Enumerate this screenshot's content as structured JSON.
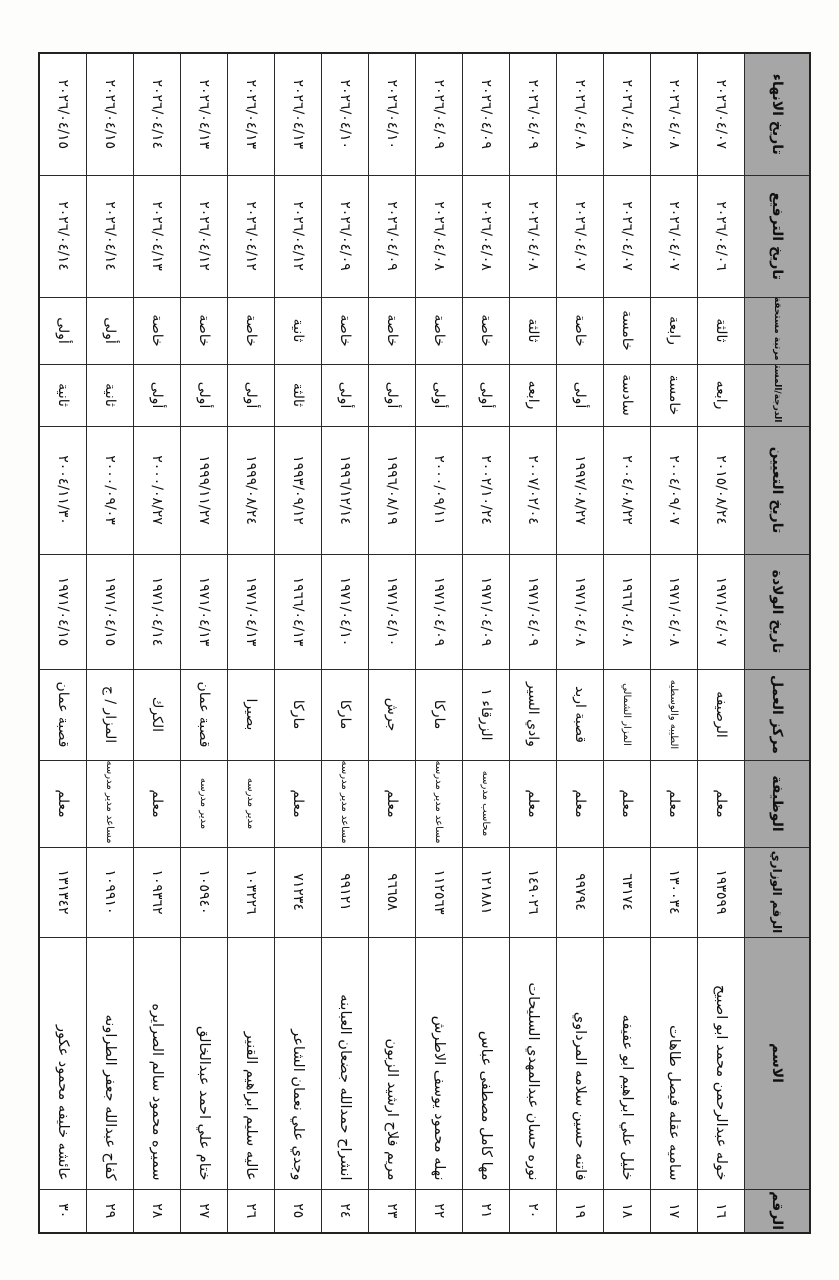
{
  "headers": [
    "الرقم",
    "الاسم",
    "الرقم الوزاري",
    "الوظيفة",
    "مركز العمل",
    "تاريخ الولادة",
    "تاريخ التعيين",
    "الدرجة/المستحقة",
    "مرتبة مستحقة",
    "تاريخ الترفيع",
    "تاريخ الانهاء"
  ],
  "header_color": "#a6a6a6",
  "rows": [
    {
      "no": "١٦",
      "name": "خوله عبدالرحمن محمد ابو اصبيح",
      "ministry_no": "١٩٣٥٩٩",
      "job": "معلم",
      "center": "الرصيفه",
      "birth": "١٩٧١/٠٤/٠٧",
      "appointed": "٢٠١٥/٠٨/٢٤",
      "grade": "رابعه",
      "rank": "ثالثة",
      "promotion": "٢٠٢٦/٠٤/٠٦",
      "end": "٢٠٢٦/٠٤/٠٧"
    },
    {
      "no": "١٧",
      "name": "ساميه عقله فيصل طاهات",
      "ministry_no": "١٣٠٠٣٤",
      "job": "معلم",
      "center": "الطيبه والوسطيه",
      "birth": "١٩٧١/٠٤/٠٨",
      "appointed": "٢٠٠٤/٠٩/٠٧",
      "grade": "خامسة",
      "rank": "رابعة",
      "promotion": "٢٠٢٦/٠٤/٠٧",
      "end": "٢٠٢٦/٠٤/٠٨"
    },
    {
      "no": "١٨",
      "name": "خليل علي ابراهيم ابو عفيفه",
      "ministry_no": "٦٣١٧٤",
      "job": "معلم",
      "center": "المزار الشمالي",
      "birth": "١٩٦٦/٠٤/٠٨",
      "appointed": "٢٠٠٤/٠٨/٢٢",
      "grade": "سادسة",
      "rank": "خامسة",
      "promotion": "٢٠٢٦/٠٤/٠٧",
      "end": "٢٠٢٦/٠٤/٠٨"
    },
    {
      "no": "١٩",
      "name": "فاتنه حسين سلامه المرداوي",
      "ministry_no": "٩٩٧٩٤",
      "job": "معلم",
      "center": "قصبة اربد",
      "birth": "١٩٧١/٠٤/٠٨",
      "appointed": "١٩٩٧/٠٨/٢٧",
      "grade": "أولى",
      "rank": "خاصة",
      "promotion": "٢٠٢٦/٠٤/٠٧",
      "end": "٢٠٢٦/٠٤/٠٨"
    },
    {
      "no": "٢٠",
      "name": "نوره حسان عبدالمهدي السليحات",
      "ministry_no": "١٤٩٠٢٦",
      "job": "معلم",
      "center": "وادي السير",
      "birth": "١٩٧١/٠٤/٠٩",
      "appointed": "٢٠٠٧/٠٢/٠٤",
      "grade": "رابعه",
      "rank": "ثالثة",
      "promotion": "٢٠٢٦/٠٤/٠٨",
      "end": "٢٠٢٦/٠٤/٠٩"
    },
    {
      "no": "٢١",
      "name": "مها كامل مصطفى عباس",
      "ministry_no": "١٢١٨٨١",
      "job": "محاسب مدرسه",
      "center": "الزرقاء ١",
      "birth": "١٩٧١/٠٤/٠٩",
      "appointed": "٢٠٠٢/١٠/٢٤",
      "grade": "أولى",
      "rank": "خاصة",
      "promotion": "٢٠٢٦/٠٤/٠٨",
      "end": "٢٠٢٦/٠٤/٠٩"
    },
    {
      "no": "٢٢",
      "name": "نهله محمود يوسف الاطرش",
      "ministry_no": "١١٢٥٦٣",
      "job": "مساعد مدير مدرسه",
      "center": "ماركا",
      "birth": "١٩٧١/٠٤/٠٩",
      "appointed": "٢٠٠٠/٠٩/١١",
      "grade": "أولى",
      "rank": "خاصة",
      "promotion": "٢٠٢٦/٠٤/٠٨",
      "end": "٢٠٢٦/٠٤/٠٩"
    },
    {
      "no": "٢٣",
      "name": "مريم فلاح ارشيد الزبون",
      "ministry_no": "٩٦٦٥٨",
      "job": "معلم",
      "center": "جرش",
      "birth": "١٩٧١/٠٤/١٠",
      "appointed": "١٩٩٦/٠٨/١٩",
      "grade": "أولى",
      "rank": "خاصة",
      "promotion": "٢٠٢٦/٠٤/٠٩",
      "end": "٢٠٢٦/٠٤/١٠"
    },
    {
      "no": "٢٤",
      "name": "انشراح حمدالله جضعان العبابنه",
      "ministry_no": "٩٩١٢١",
      "job": "مساعد مدير مدرسه",
      "center": "ماركا",
      "birth": "١٩٧١/٠٤/١٠",
      "appointed": "١٩٩٦/١٢/١٤",
      "grade": "أولى",
      "rank": "خاصة",
      "promotion": "٢٠٢٦/٠٤/٠٩",
      "end": "٢٠٢٦/٠٤/١٠"
    },
    {
      "no": "٢٥",
      "name": "وجدي علي نعمان الشاعر",
      "ministry_no": "٧١٢٣٤",
      "job": "معلم",
      "center": "ماركا",
      "birth": "١٩٦٦/٠٤/١٣",
      "appointed": "١٩٩٣/٠٩/١٢",
      "grade": "ثالثة",
      "rank": "ثانية",
      "promotion": "٢٠٢٦/٠٤/١٢",
      "end": "٢٠٢٦/٠٤/١٣"
    },
    {
      "no": "٢٦",
      "name": "عاليه سليم ابراهيم القنير",
      "ministry_no": "١٠٣٢٢٦",
      "job": "مدير مدرسه",
      "center": "بصيرا",
      "birth": "١٩٧١/٠٤/١٣",
      "appointed": "١٩٩٩/٠٨/٢٤",
      "grade": "أولى",
      "rank": "خاصة",
      "promotion": "٢٠٢٦/٠٤/١٢",
      "end": "٢٠٢٦/٠٤/١٣"
    },
    {
      "no": "٢٧",
      "name": "ختام علي احمد عبدالخالق",
      "ministry_no": "١٠٥٩٤٠",
      "job": "مدير مدرسه",
      "center": "قصبة عمان",
      "birth": "١٩٧١/٠٤/١٣",
      "appointed": "١٩٩٩/١١/٢٧",
      "grade": "أولى",
      "rank": "خاصة",
      "promotion": "٢٠٢٦/٠٤/١٢",
      "end": "٢٠٢٦/٠٤/١٣"
    },
    {
      "no": "٢٨",
      "name": "سميره محمود سالم الصرايره",
      "ministry_no": "١٠٩٣٦٢",
      "job": "معلم",
      "center": "الكرك",
      "birth": "١٩٧١/٠٤/١٤",
      "appointed": "٢٠٠٠/٠٨/٢٧",
      "grade": "أولى",
      "rank": "خاصة",
      "promotion": "٢٠٢٦/٠٤/١٣",
      "end": "٢٠٢٦/٠٤/١٤"
    },
    {
      "no": "٢٩",
      "name": "كفاح عبدالله جعفر الطراونه",
      "ministry_no": "١٠٩٩١٠",
      "job": "مساعد مدير مدرسه",
      "center": "المزار / ج",
      "birth": "١٩٧١/٠٤/١٥",
      "appointed": "٢٠٠٠/٠٩/٠٣",
      "grade": "ثانية",
      "rank": "أولى",
      "promotion": "٢٠٢٦/٠٤/١٤",
      "end": "٢٠٢٦/٠٤/١٥"
    },
    {
      "no": "٣٠",
      "name": "عائشه خليفه محمود عكور",
      "ministry_no": "١٣١٣٤٢",
      "job": "معلم",
      "center": "قصبة عمان",
      "birth": "١٩٧١/٠٤/١٥",
      "appointed": "٢٠٠٤/١١/٣٠",
      "grade": "ثانية",
      "rank": "أولى",
      "promotion": "٢٠٢٦/٠٤/١٤",
      "end": "٢٠٢٦/٠٤/١٥"
    }
  ]
}
